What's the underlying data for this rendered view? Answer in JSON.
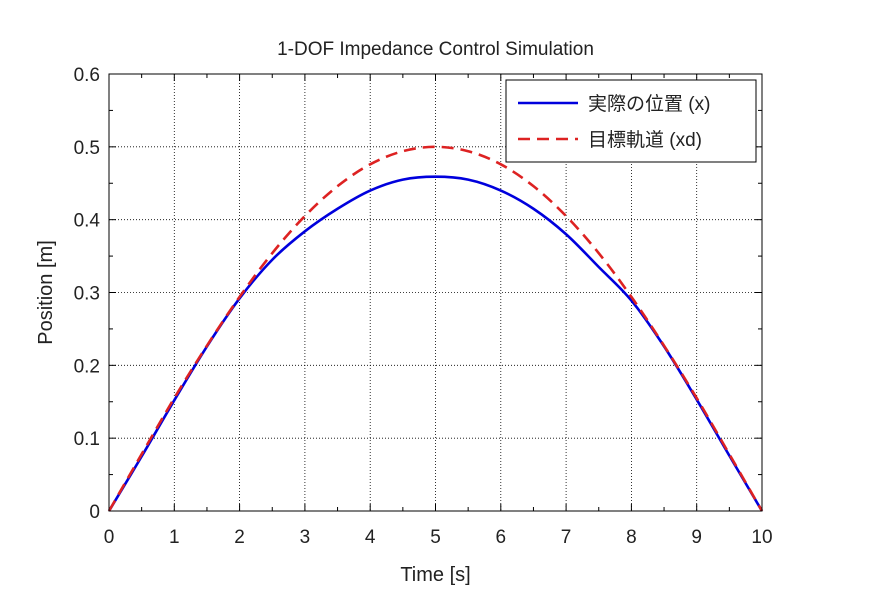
{
  "chart_data": {
    "type": "line",
    "title": "1-DOF Impedance Control Simulation",
    "xlabel": "Time [s]",
    "ylabel": "Position [m]",
    "xlim": [
      0,
      10
    ],
    "ylim": [
      0,
      0.6
    ],
    "xticks": [
      0,
      1,
      2,
      3,
      4,
      5,
      6,
      7,
      8,
      9,
      10
    ],
    "yticks": [
      0,
      0.1,
      0.2,
      0.3,
      0.4,
      0.5,
      0.6
    ],
    "ytick_labels": [
      "0",
      "0.1",
      "0.2",
      "0.3",
      "0.4",
      "0.5",
      "0.6"
    ],
    "grid": true,
    "legend_position": "top-right",
    "series": [
      {
        "name": "実際の位置 (x)",
        "color": "#0000dd",
        "style": "solid",
        "x": [
          0,
          0.5,
          1,
          1.5,
          2,
          2.5,
          3,
          3.5,
          4,
          4.5,
          5,
          5.5,
          6,
          6.5,
          7,
          7.5,
          8,
          8.5,
          9,
          9.5,
          10
        ],
        "y": [
          0,
          0.075,
          0.152,
          0.226,
          0.292,
          0.345,
          0.384,
          0.415,
          0.44,
          0.455,
          0.459,
          0.455,
          0.44,
          0.415,
          0.38,
          0.335,
          0.289,
          0.226,
          0.153,
          0.076,
          0
        ]
      },
      {
        "name": "目標軌道 (xd)",
        "color": "#dd2222",
        "style": "dashed",
        "x": [
          0,
          0.5,
          1,
          1.5,
          2,
          2.5,
          3,
          3.5,
          4,
          4.5,
          5,
          5.5,
          6,
          6.5,
          7,
          7.5,
          8,
          8.5,
          9,
          9.5,
          10
        ],
        "y": [
          0,
          0.078,
          0.155,
          0.227,
          0.294,
          0.354,
          0.405,
          0.446,
          0.476,
          0.494,
          0.5,
          0.494,
          0.476,
          0.446,
          0.405,
          0.354,
          0.294,
          0.227,
          0.155,
          0.078,
          0
        ]
      }
    ]
  }
}
